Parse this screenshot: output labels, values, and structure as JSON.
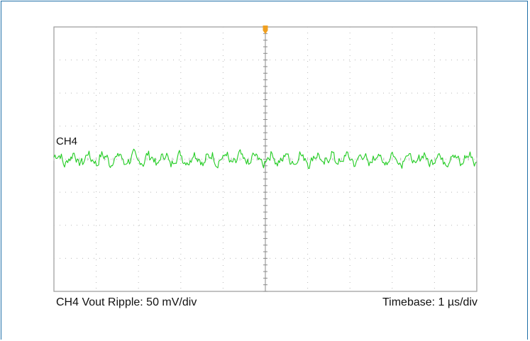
{
  "chart_data": {
    "type": "line",
    "channel_label": "CH4",
    "caption_left": "CH4 Vout Ripple: 50 mV/div",
    "caption_right": "Timebase: 1 µs/div",
    "grid": true,
    "divisions": {
      "horizontal": 10,
      "vertical": 8
    },
    "x_unit": "µs",
    "y_unit": "mV",
    "xlim": [
      -5,
      5
    ],
    "ylim": [
      -200,
      200
    ],
    "trigger_position": 0,
    "series": [
      {
        "label": "CH4",
        "color": "#22cc22",
        "offset_mV": 0,
        "ripple_peak_to_peak_mV": 25,
        "ripple_period_us": 0.36
      }
    ]
  },
  "colors": {
    "frame": "#1f6fa8",
    "grid_border": "#9a9a9a",
    "grid_dots": "#b8b8b8",
    "trigger_marker": "#f0a020",
    "trace": "#22cc22"
  }
}
